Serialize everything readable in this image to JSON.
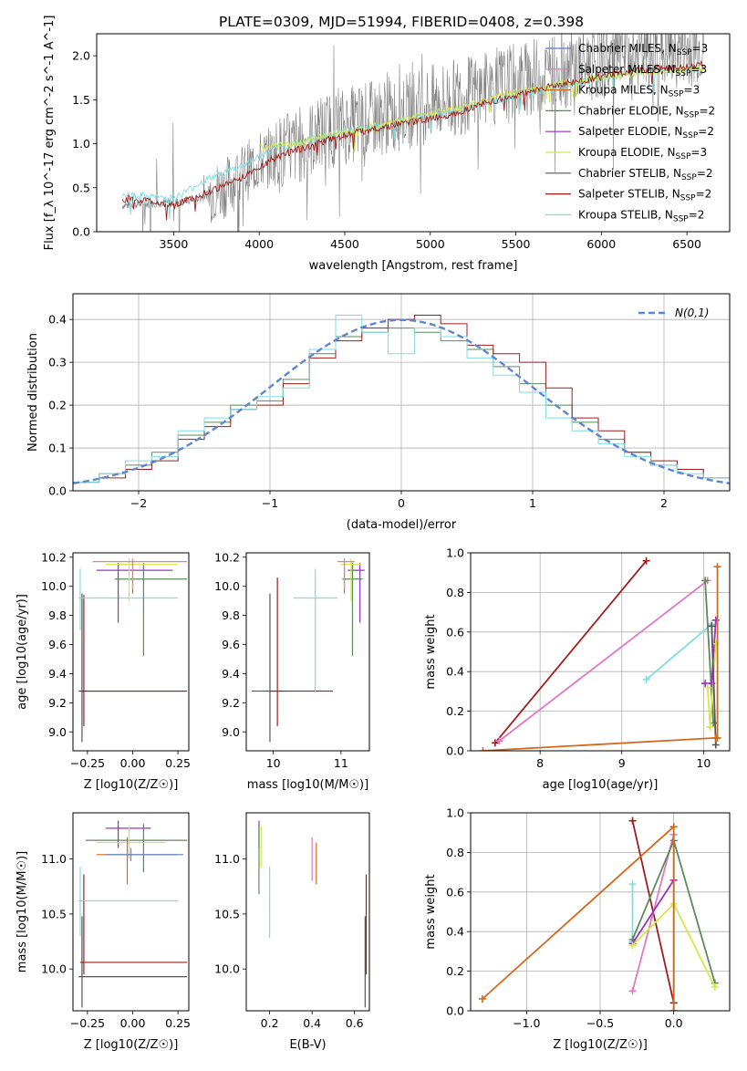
{
  "figure": {
    "title": "PLATE=0309, MJD=51994, FIBERID=0408, z=0.398"
  },
  "legend_entries": [
    {
      "name": "Chabrier MILES, N_SSP=3",
      "color": "#6a78c4"
    },
    {
      "name": "Salpeter MILES, N_SSP=3",
      "color": "#e377c2"
    },
    {
      "name": "Kroupa MILES, N_SSP=3",
      "color": "#d2691e"
    },
    {
      "name": "Chabrier ELODIE, N_SSP=2",
      "color": "#5b8a5b"
    },
    {
      "name": "Salpeter ELODIE, N_SSP=2",
      "color": "#9b30c9"
    },
    {
      "name": "Kroupa ELODIE, N_SSP=3",
      "color": "#d4e84a"
    },
    {
      "name": "Chabrier STELIB, N_SSP=2",
      "color": "#555555"
    },
    {
      "name": "Salpeter STELIB, N_SSP=2",
      "color": "#a01c1c"
    },
    {
      "name": "Kroupa STELIB, N_SSP=2",
      "color": "#7fdde0"
    }
  ],
  "chart_data": [
    {
      "id": "spectrum",
      "type": "line",
      "xlabel": "wavelength [Angstrom, rest frame]",
      "ylabel": "Flux [f_λ 10^-17 erg cm^-2 s^-1 A^-1]",
      "xlim": [
        3050,
        6750
      ],
      "ylim": [
        0,
        2.25
      ],
      "xticks": [
        3500,
        4000,
        4500,
        5000,
        5500,
        6000,
        6500
      ],
      "yticks": [
        0.0,
        0.5,
        1.0,
        1.5,
        2.0
      ],
      "series": [
        {
          "name": "data",
          "color": "#808080",
          "x": [
            3200,
            3600,
            3800,
            4000,
            4200,
            4400,
            4600,
            4800,
            5000,
            5200,
            5400,
            5600,
            5800,
            6000,
            6200,
            6400,
            6600
          ],
          "y": [
            0.3,
            0.35,
            0.5,
            0.8,
            0.95,
            1.15,
            1.25,
            1.35,
            1.45,
            1.55,
            1.65,
            1.75,
            1.85,
            1.95,
            2.0,
            2.05,
            2.1
          ]
        },
        {
          "name": "Kroupa STELIB, N_SSP=2",
          "color": "#7fdde0",
          "x": [
            3200,
            3250,
            3500,
            3700,
            3900,
            4100,
            4300,
            4500,
            4700,
            4900,
            5100,
            5300,
            5500,
            5700,
            5900,
            6100,
            6300,
            6500,
            6600
          ],
          "y": [
            0.4,
            0.42,
            0.38,
            0.6,
            0.75,
            0.95,
            1.05,
            1.15,
            1.2,
            1.3,
            1.35,
            1.45,
            1.55,
            1.62,
            1.7,
            1.78,
            1.82,
            1.85,
            1.86
          ]
        },
        {
          "name": "Kroupa ELODIE, N_SSP=3",
          "color": "#d4e84a",
          "x": [
            4000,
            4200,
            4400,
            4600,
            4800,
            5000,
            5200,
            5400,
            5600,
            5800,
            6000,
            6200,
            6400,
            6600
          ],
          "y": [
            0.95,
            1.0,
            1.1,
            1.18,
            1.25,
            1.35,
            1.42,
            1.55,
            1.62,
            1.7,
            1.75,
            1.8,
            1.84,
            1.86
          ]
        },
        {
          "name": "Salpeter STELIB, N_SSP=2",
          "color": "#a01c1c",
          "x": [
            3200,
            3250,
            3500,
            3700,
            3900,
            4100,
            4300,
            4500,
            4700,
            4900,
            5100,
            5300,
            5500,
            5700,
            5900,
            6100,
            6300,
            6500,
            6600
          ],
          "y": [
            0.35,
            0.38,
            0.3,
            0.45,
            0.62,
            0.85,
            0.98,
            1.1,
            1.18,
            1.25,
            1.32,
            1.45,
            1.55,
            1.65,
            1.72,
            1.8,
            1.85,
            1.88,
            1.9
          ]
        }
      ]
    },
    {
      "id": "residual_hist",
      "type": "bar",
      "xlabel": "(data-model)/error",
      "ylabel": "Normed distribution",
      "xlim": [
        -2.5,
        2.5
      ],
      "ylim": [
        0,
        0.46
      ],
      "xticks": [
        -2,
        -1,
        0,
        1,
        2
      ],
      "yticks": [
        0.0,
        0.1,
        0.2,
        0.3,
        0.4
      ],
      "legend": "N(0,1)",
      "series": [
        {
          "name": "Chabrier STELIB, N_SSP=2",
          "color": "#5b8a5b",
          "bin_centers": [
            -2.4,
            -2.2,
            -2.0,
            -1.8,
            -1.6,
            -1.4,
            -1.2,
            -1.0,
            -0.8,
            -0.6,
            -0.4,
            -0.2,
            0.0,
            0.2,
            0.4,
            0.6,
            0.8,
            1.0,
            1.2,
            1.4,
            1.6,
            1.8,
            2.0,
            2.2,
            2.4
          ],
          "values": [
            0.02,
            0.04,
            0.06,
            0.09,
            0.13,
            0.16,
            0.2,
            0.21,
            0.26,
            0.32,
            0.36,
            0.37,
            0.38,
            0.37,
            0.35,
            0.33,
            0.29,
            0.25,
            0.2,
            0.16,
            0.12,
            0.09,
            0.06,
            0.05,
            0.03
          ]
        },
        {
          "name": "Salpeter STELIB, N_SSP=2",
          "color": "#a01c1c",
          "bin_centers": [
            -2.4,
            -2.2,
            -2.0,
            -1.8,
            -1.6,
            -1.4,
            -1.2,
            -1.0,
            -0.8,
            -0.6,
            -0.4,
            -0.2,
            0.0,
            0.2,
            0.4,
            0.6,
            0.8,
            1.0,
            1.2,
            1.4,
            1.6,
            1.8,
            2.0,
            2.2,
            2.4
          ],
          "values": [
            0.02,
            0.03,
            0.05,
            0.07,
            0.12,
            0.15,
            0.19,
            0.2,
            0.25,
            0.31,
            0.35,
            0.38,
            0.4,
            0.41,
            0.39,
            0.34,
            0.32,
            0.3,
            0.24,
            0.17,
            0.14,
            0.09,
            0.07,
            0.05,
            0.03
          ]
        },
        {
          "name": "Kroupa STELIB, N_SSP=2",
          "color": "#7fdde0",
          "bin_centers": [
            -2.4,
            -2.2,
            -2.0,
            -1.8,
            -1.6,
            -1.4,
            -1.2,
            -1.0,
            -0.8,
            -0.6,
            -0.4,
            -0.2,
            0.0,
            0.2,
            0.4,
            0.6,
            0.8,
            1.0,
            1.2,
            1.4,
            1.6,
            1.8,
            2.0,
            2.2,
            2.4
          ],
          "values": [
            0.02,
            0.04,
            0.07,
            0.08,
            0.14,
            0.17,
            0.19,
            0.22,
            0.24,
            0.33,
            0.41,
            0.37,
            0.32,
            0.38,
            0.36,
            0.31,
            0.27,
            0.23,
            0.17,
            0.14,
            0.11,
            0.08,
            0.06,
            0.04,
            0.03
          ]
        },
        {
          "name": "N(0,1)",
          "color": "#5b85d6",
          "x": [
            -2.5,
            -2.0,
            -1.5,
            -1.0,
            -0.5,
            0.0,
            0.5,
            1.0,
            1.5,
            2.0,
            2.5
          ],
          "values": [
            0.018,
            0.054,
            0.13,
            0.242,
            0.352,
            0.399,
            0.352,
            0.242,
            0.13,
            0.054,
            0.018
          ]
        }
      ]
    },
    {
      "id": "age_vs_Z",
      "type": "scatter",
      "xlabel": "Z [log10(Z/Z☉)]",
      "ylabel": "age  [log10(age/yr)]",
      "xlim": [
        -0.33,
        0.31
      ],
      "ylim": [
        8.87,
        10.23
      ],
      "xticks": [
        -0.25,
        0.0,
        0.25
      ],
      "yticks": [
        9.0,
        9.2,
        9.4,
        9.6,
        9.8,
        10.0,
        10.2
      ],
      "points": [
        {
          "color": "#555555",
          "x": -0.28,
          "y": 9.28,
          "x_lo": -0.3,
          "x_hi": 0.3,
          "y_lo": 8.93,
          "y_hi": 9.95
        },
        {
          "color": "#a01c1c",
          "x": -0.27,
          "y": 9.28,
          "x_lo": -0.29,
          "x_hi": 0.29,
          "y_lo": 9.04,
          "y_hi": 9.94
        },
        {
          "color": "#7fdde0",
          "x": -0.29,
          "y": 9.92,
          "x_lo": -0.3,
          "x_hi": 0.25,
          "y_lo": 9.7,
          "y_hi": 10.12
        },
        {
          "color": "#9b30c9",
          "x": -0.08,
          "y": 10.11,
          "x_lo": -0.2,
          "x_hi": 0.22,
          "y_lo": 9.75,
          "y_hi": 10.16
        },
        {
          "color": "#5b8a5b",
          "x": 0.06,
          "y": 10.05,
          "x_lo": -0.1,
          "x_hi": 0.3,
          "y_lo": 9.52,
          "y_hi": 10.16
        },
        {
          "color": "#d4e84a",
          "x": -0.02,
          "y": 10.15,
          "x_lo": -0.15,
          "x_hi": 0.25,
          "y_lo": 9.9,
          "y_hi": 10.19
        },
        {
          "color": "#d2691e",
          "x": 0.0,
          "y": 10.17,
          "x_lo": -0.22,
          "x_hi": 0.3,
          "y_lo": 9.95,
          "y_hi": 10.19
        },
        {
          "color": "#e377c2",
          "x": 0.0,
          "y": 10.17,
          "x_lo": -0.22,
          "x_hi": 0.3,
          "y_lo": 9.98,
          "y_hi": 10.19
        }
      ]
    },
    {
      "id": "age_vs_mass",
      "type": "scatter",
      "xlabel": "mass [log10(M/M☉)]",
      "ylabel": "",
      "xlim": [
        9.6,
        11.42
      ],
      "ylim": [
        8.87,
        10.23
      ],
      "xticks": [
        10,
        11
      ],
      "yticks": [
        9.0,
        9.2,
        9.4,
        9.6,
        9.8,
        10.0,
        10.2
      ],
      "points": [
        {
          "color": "#555555",
          "x": 9.95,
          "y": 9.28,
          "x_lo": 9.68,
          "x_hi": 10.2,
          "y_lo": 8.93,
          "y_hi": 9.95
        },
        {
          "color": "#a01c1c",
          "x": 10.06,
          "y": 9.28,
          "x_lo": 9.95,
          "x_hi": 10.88,
          "y_lo": 9.04,
          "y_hi": 10.06
        },
        {
          "color": "#7fdde0",
          "x": 10.62,
          "y": 9.92,
          "x_lo": 10.3,
          "x_hi": 10.95,
          "y_lo": 9.27,
          "y_hi": 10.12
        },
        {
          "color": "#9b30c9",
          "x": 11.28,
          "y": 10.11,
          "x_lo": 11.1,
          "x_hi": 11.35,
          "y_lo": 9.75,
          "y_hi": 10.16
        },
        {
          "color": "#5b8a5b",
          "x": 11.17,
          "y": 10.05,
          "x_lo": 11.02,
          "x_hi": 11.32,
          "y_lo": 9.52,
          "y_hi": 10.16
        },
        {
          "color": "#d4e84a",
          "x": 11.15,
          "y": 10.15,
          "x_lo": 11.0,
          "x_hi": 11.3,
          "y_lo": 9.9,
          "y_hi": 10.19
        },
        {
          "color": "#d2691e",
          "x": 11.05,
          "y": 10.17,
          "x_lo": 10.95,
          "x_hi": 11.2,
          "y_lo": 9.95,
          "y_hi": 10.19
        },
        {
          "color": "#e377c2",
          "x": 11.05,
          "y": 10.17,
          "x_lo": 10.95,
          "x_hi": 11.2,
          "y_lo": 9.98,
          "y_hi": 10.19
        }
      ]
    },
    {
      "id": "massweight_vs_age",
      "type": "line",
      "xlabel": "age  [log10(age/yr)]",
      "ylabel": "mass weight",
      "xlim": [
        7.15,
        10.32
      ],
      "ylim": [
        0,
        1.0
      ],
      "xticks": [
        8,
        9,
        10
      ],
      "yticks": [
        0.0,
        0.2,
        0.4,
        0.6,
        0.8,
        1.0
      ],
      "series": [
        {
          "color": "#a01c1c",
          "x": [
            9.3,
            7.45
          ],
          "y": [
            0.96,
            0.04
          ]
        },
        {
          "color": "#e377c2",
          "x": [
            10.05,
            7.5
          ],
          "y": [
            0.86,
            0.05
          ]
        },
        {
          "color": "#7fdde0",
          "x": [
            9.3,
            10.1
          ],
          "y": [
            0.36,
            0.64
          ]
        },
        {
          "color": "#5b8a5b",
          "x": [
            10.02,
            10.12
          ],
          "y": [
            0.86,
            0.14
          ]
        },
        {
          "color": "#9b30c9",
          "x": [
            10.02,
            10.1,
            10.15
          ],
          "y": [
            0.34,
            0.34,
            0.66
          ]
        },
        {
          "color": "#d4e84a",
          "x": [
            10.05,
            10.08,
            10.15
          ],
          "y": [
            0.32,
            0.12,
            0.54
          ]
        },
        {
          "color": "#555555",
          "x": [
            10.1,
            10.15
          ],
          "y": [
            0.63,
            0.03
          ]
        },
        {
          "color": "#d2691e",
          "x": [
            7.3,
            10.15,
            10.17,
            10.17
          ],
          "y": [
            0.0,
            0.065,
            0.065,
            0.93
          ]
        }
      ]
    },
    {
      "id": "mass_vs_Z",
      "type": "scatter",
      "xlabel": "Z [log10(Z/Z☉)]",
      "ylabel": "mass [log10(M/M☉)]",
      "xlim": [
        -0.33,
        0.31
      ],
      "ylim": [
        9.62,
        11.42
      ],
      "xticks": [
        -0.25,
        0.0,
        0.25
      ],
      "yticks": [
        10.0,
        10.5,
        11.0
      ],
      "points": [
        {
          "color": "#555555",
          "x": -0.28,
          "y": 9.93,
          "x_lo": -0.3,
          "x_hi": 0.3,
          "y_lo": 9.65,
          "y_hi": 10.48
        },
        {
          "color": "#a01c1c",
          "x": -0.27,
          "y": 10.06,
          "x_lo": -0.29,
          "x_hi": 0.3,
          "y_lo": 9.95,
          "y_hi": 10.86
        },
        {
          "color": "#7fdde0",
          "x": -0.29,
          "y": 10.62,
          "x_lo": -0.3,
          "x_hi": 0.25,
          "y_lo": 10.3,
          "y_hi": 10.93
        },
        {
          "color": "#9b30c9",
          "x": -0.08,
          "y": 11.28,
          "x_lo": -0.15,
          "x_hi": 0.1,
          "y_lo": 11.1,
          "y_hi": 11.35
        },
        {
          "color": "#5b8a5b",
          "x": 0.06,
          "y": 11.17,
          "x_lo": -0.26,
          "x_hi": 0.3,
          "y_lo": 10.88,
          "y_hi": 11.32
        },
        {
          "color": "#d4e84a",
          "x": -0.02,
          "y": 11.15,
          "x_lo": -0.2,
          "x_hi": 0.18,
          "y_lo": 11.0,
          "y_hi": 11.3
        },
        {
          "color": "#d2691e",
          "x": -0.03,
          "y": 11.04,
          "x_lo": -0.2,
          "x_hi": 0.25,
          "y_lo": 10.77,
          "y_hi": 11.2
        },
        {
          "color": "#5b85d6",
          "x": -0.01,
          "y": 11.04,
          "x_lo": -0.15,
          "x_hi": 0.28,
          "y_lo": 10.98,
          "y_hi": 11.1
        }
      ]
    },
    {
      "id": "mass_vs_EBV",
      "type": "scatter",
      "xlabel": "E(B-V)",
      "ylabel": "",
      "xlim": [
        0.09,
        0.67
      ],
      "ylim": [
        9.62,
        11.42
      ],
      "xticks": [
        0.2,
        0.4,
        0.6
      ],
      "yticks": [
        10.0,
        10.5,
        11.0
      ],
      "points": [
        {
          "color": "#555555",
          "x": 0.65,
          "y": 9.93,
          "y_lo": 9.65,
          "y_hi": 10.48
        },
        {
          "color": "#a01c1c",
          "x": 0.655,
          "y": 10.06,
          "y_lo": 9.95,
          "y_hi": 10.86
        },
        {
          "color": "#7fdde0",
          "x": 0.2,
          "y": 10.62,
          "y_lo": 10.28,
          "y_hi": 10.93
        },
        {
          "color": "#9b30c9",
          "x": 0.15,
          "y": 11.28,
          "y_lo": 11.1,
          "y_hi": 11.35
        },
        {
          "color": "#5b8a5b",
          "x": 0.15,
          "y": 11.17,
          "y_lo": 10.68,
          "y_hi": 11.32
        },
        {
          "color": "#d4e84a",
          "x": 0.16,
          "y": 11.15,
          "y_lo": 10.92,
          "y_hi": 11.3
        },
        {
          "color": "#d2691e",
          "x": 0.42,
          "y": 11.0,
          "y_lo": 10.77,
          "y_hi": 11.15
        },
        {
          "color": "#e377c2",
          "x": 0.4,
          "y": 11.05,
          "y_lo": 10.8,
          "y_hi": 11.2
        }
      ]
    },
    {
      "id": "massweight_vs_Z",
      "type": "line",
      "xlabel": "Z [log10(Z/Z☉)]",
      "ylabel": "mass weight",
      "xlim": [
        -1.38,
        0.38
      ],
      "ylim": [
        0,
        1.0
      ],
      "xticks": [
        -1.0,
        -0.5,
        0.0
      ],
      "yticks": [
        0.0,
        0.2,
        0.4,
        0.6,
        0.8,
        1.0
      ],
      "series": [
        {
          "color": "#a01c1c",
          "x": [
            -0.28,
            0.0
          ],
          "y": [
            0.96,
            0.04
          ]
        },
        {
          "color": "#e377c2",
          "x": [
            -0.28,
            0.0,
            0.0
          ],
          "y": [
            0.1,
            0.89,
            0.0
          ]
        },
        {
          "color": "#7fdde0",
          "x": [
            -0.28,
            -0.28
          ],
          "y": [
            0.35,
            0.64
          ]
        },
        {
          "color": "#5b8a5b",
          "x": [
            -0.28,
            0.0,
            0.28
          ],
          "y": [
            0.36,
            0.86,
            0.14
          ]
        },
        {
          "color": "#9b30c9",
          "x": [
            -0.28,
            0.0
          ],
          "y": [
            0.34,
            0.66
          ]
        },
        {
          "color": "#d4e84a",
          "x": [
            -0.28,
            0.0,
            0.28
          ],
          "y": [
            0.33,
            0.54,
            0.12
          ]
        },
        {
          "color": "#d2691e",
          "x": [
            -1.3,
            0.0,
            0.0
          ],
          "y": [
            0.06,
            0.93,
            0.0
          ]
        }
      ]
    }
  ]
}
